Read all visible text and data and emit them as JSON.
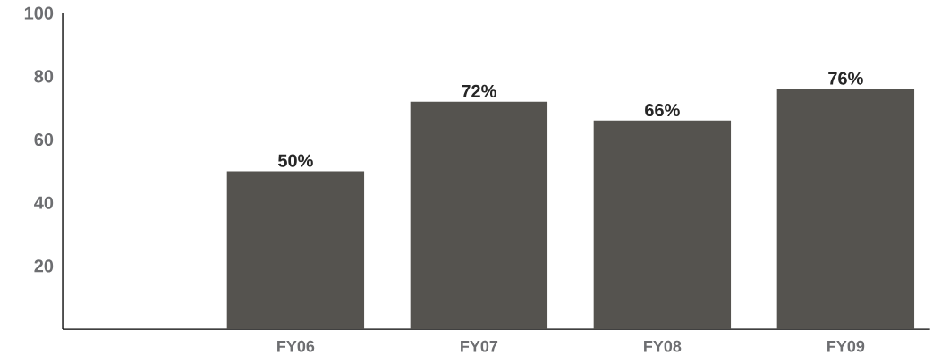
{
  "chart_data": {
    "type": "bar",
    "categories": [
      null,
      "FY06",
      "FY07",
      "FY08",
      "FY09"
    ],
    "values": [
      null,
      50,
      72,
      66,
      76
    ],
    "value_labels": [
      null,
      "50%",
      "72%",
      "66%",
      "76%"
    ],
    "color": "#55534f",
    "ylim": [
      0,
      100
    ],
    "yticks": [
      20,
      40,
      60,
      80,
      100
    ]
  }
}
